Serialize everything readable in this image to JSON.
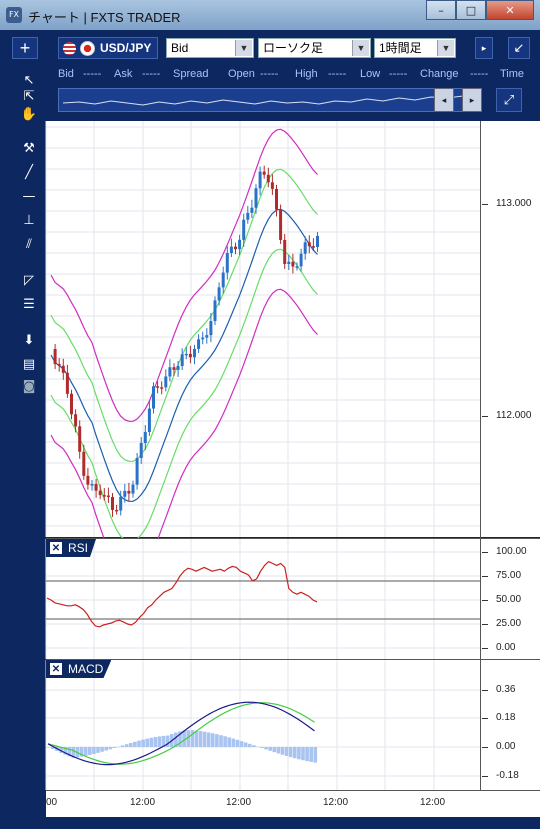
{
  "window": {
    "icon": "FX",
    "title": "チャート | FXTS TRADER",
    "buttons": [
      "minimize",
      "maximize",
      "close"
    ]
  },
  "toolbar": {
    "add_label": "+",
    "symbol": "USD/JPY",
    "price_type": "Bid",
    "chart_type": "ローソク足",
    "timeframe": "1時間足"
  },
  "quote": {
    "bid_label": "Bid",
    "bid_value": "-----",
    "ask_label": "Ask",
    "ask_value": "-----",
    "spread_label": "Spread",
    "open_label": "Open",
    "open_value": "-----",
    "high_label": "High",
    "high_value": "-----",
    "low_label": "Low",
    "low_value": "-----",
    "change_label": "Change",
    "change_value": "-----",
    "time_label": "Time"
  },
  "price_axis": [
    "113.000",
    "112.000"
  ],
  "rsi": {
    "label": "RSI",
    "ticks": [
      "100.00",
      "75.00",
      "50.00",
      "25.00",
      "0.00"
    ],
    "values": [
      52,
      50,
      47,
      46,
      45,
      44,
      44,
      45,
      43,
      40,
      35,
      28,
      23,
      22,
      24,
      25,
      26,
      28,
      29,
      27,
      25,
      24,
      27,
      32,
      36,
      42,
      45,
      50,
      54,
      58,
      60,
      62,
      68,
      75,
      80,
      83,
      82,
      80,
      82,
      84,
      82,
      80,
      81,
      82,
      80,
      83,
      85,
      84,
      80,
      78,
      76,
      70,
      72,
      80,
      86,
      90,
      88,
      86,
      88,
      84,
      62,
      58,
      56,
      58,
      56,
      54,
      50,
      48
    ]
  },
  "macd": {
    "label": "MACD",
    "ticks": [
      "0.36",
      "0.18",
      "0.00",
      "-0.18"
    ]
  },
  "xaxis": {
    "labels": [
      "00",
      "12:00",
      "12:00",
      "12:00",
      "12:00"
    ]
  },
  "colors": {
    "frame": "#0d2761",
    "bull": "#2a72c8",
    "bear": "#b02b2b",
    "bb_mid": "#1a5fb0",
    "bb_1": "#66dd66",
    "bb_2": "#d22cc0",
    "rsi": "#cc2222",
    "macd": "#1a1a8a",
    "signal": "#44cc44",
    "hist": "#a9c4f0"
  }
}
